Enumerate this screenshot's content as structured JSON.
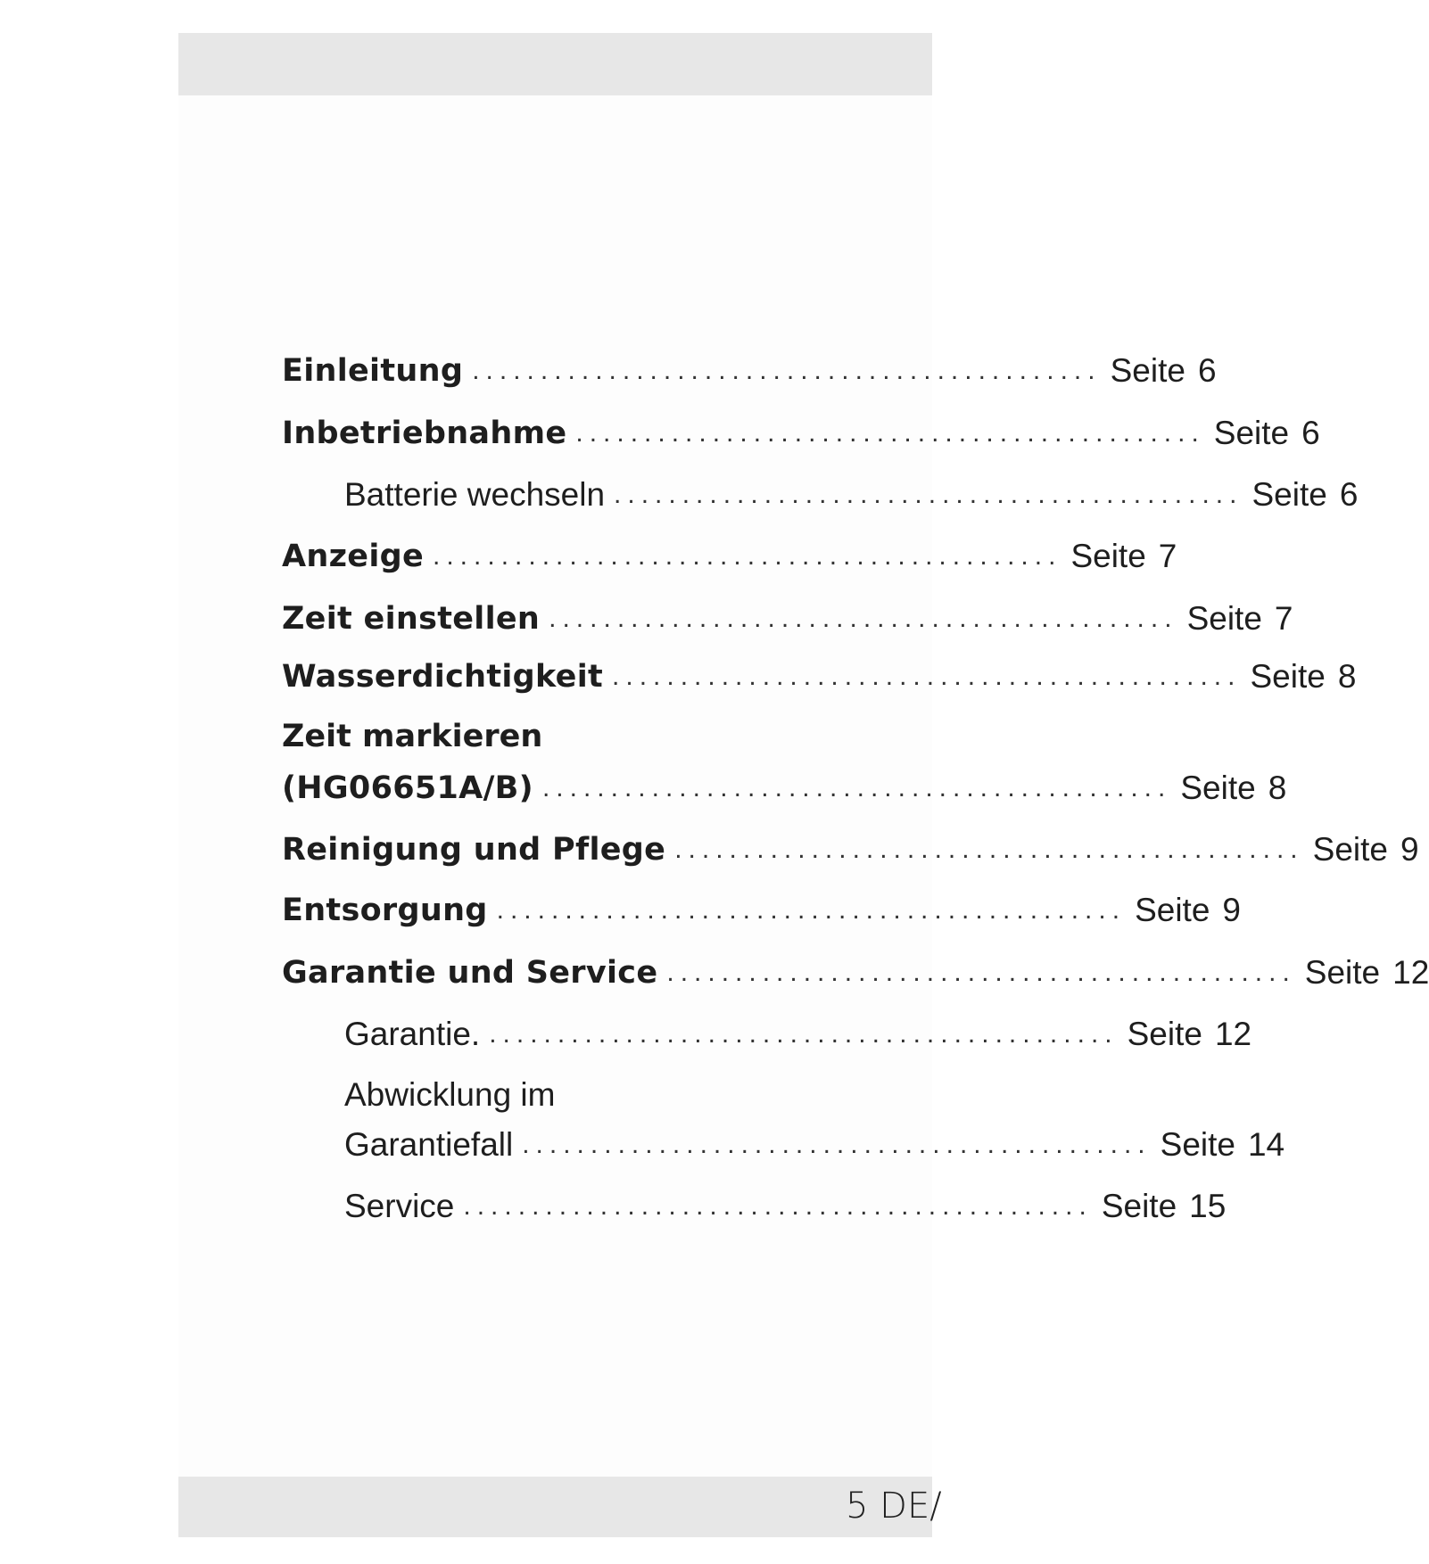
{
  "toc": [
    {
      "title": "Einleitung",
      "seite": "Seite",
      "page": "6",
      "level": 1
    },
    {
      "title": "Inbetriebnahme",
      "seite": "Seite",
      "page": "6",
      "level": 1
    },
    {
      "title": "Batterie wechseln",
      "seite": "Seite",
      "page": "6",
      "level": 2
    },
    {
      "title": "Anzeige",
      "seite": "Seite",
      "page": "7",
      "level": 1
    },
    {
      "title": "Zeit einstellen",
      "seite": "Seite",
      "page": "7",
      "level": 1
    },
    {
      "title": "Wasserdichtigkeit",
      "seite": "Seite",
      "page": "8",
      "level": 1
    },
    {
      "title_line1": "Zeit markieren",
      "title": "(HG06651A/B)",
      "seite": "Seite",
      "page": "8",
      "level": 1
    },
    {
      "title": "Reinigung und Pflege",
      "seite": "Seite",
      "page": "9",
      "level": 1
    },
    {
      "title": "Entsorgung",
      "seite": "Seite",
      "page": "9",
      "level": 1
    },
    {
      "title": "Garantie und Service",
      "seite": "Seite",
      "page": "12",
      "level": 1
    },
    {
      "title": "Garantie.",
      "seite": "Seite",
      "page": "12",
      "level": 2
    },
    {
      "title_line1": "Abwicklung im",
      "title": "Garantiefall",
      "seite": "Seite",
      "page": "14",
      "level": 2
    },
    {
      "title": "Service",
      "seite": "Seite",
      "page": "15",
      "level": 2
    }
  ],
  "footer": {
    "folio": "5 DE/"
  }
}
